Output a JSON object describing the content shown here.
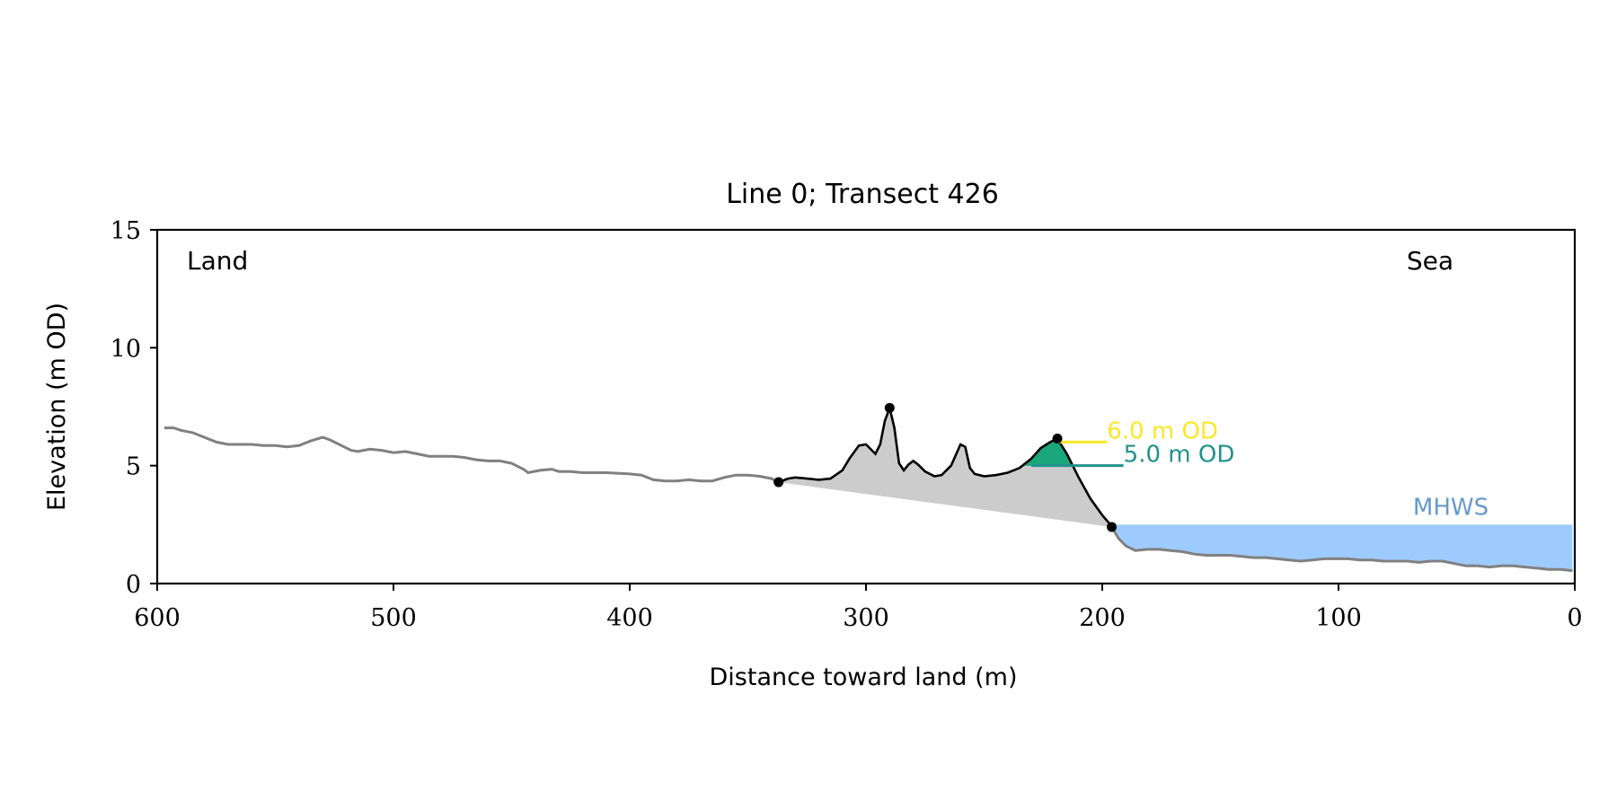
{
  "chart_data": {
    "type": "line",
    "title": "Line 0; Transect 426",
    "xlabel": "Distance toward land (m)",
    "ylabel": "Elevation (m OD)",
    "xlim": [
      600,
      0
    ],
    "ylim": [
      0,
      15
    ],
    "x_axis_inverted": true,
    "xticks": [
      600,
      500,
      400,
      300,
      200,
      100,
      0
    ],
    "yticks": [
      0,
      5,
      10,
      15
    ],
    "grid": false,
    "region_labels": {
      "left": "Land",
      "right": "Sea"
    },
    "annotations": {
      "mhws_label": "MHWS",
      "level6_label": "6.0 m OD",
      "level5_label": "5.0 m OD"
    },
    "colors": {
      "profile": "#808080",
      "dune": "#000000",
      "dune_fill": "#cccccc",
      "mhws_fill": "#9ecbff",
      "mhws_text": "#6699cc",
      "level6": "#fde725",
      "level5": "#21918c",
      "above5_fill": "#1ba67c"
    },
    "mhws_level": 2.5,
    "profile": {
      "x": [
        597,
        593,
        590,
        585,
        580,
        575,
        570,
        565,
        560,
        555,
        550,
        545,
        540,
        535,
        530,
        527,
        523,
        518,
        515,
        510,
        505,
        500,
        495,
        490,
        485,
        480,
        475,
        470,
        465,
        460,
        455,
        450,
        445,
        443,
        438,
        433,
        430,
        425,
        420,
        410,
        400,
        395,
        390,
        385,
        380,
        375,
        370,
        365,
        360,
        355,
        350,
        345,
        340,
        337
      ],
      "y": [
        6.6,
        6.6,
        6.5,
        6.4,
        6.2,
        6.0,
        5.9,
        5.9,
        5.9,
        5.85,
        5.85,
        5.8,
        5.85,
        6.05,
        6.2,
        6.1,
        5.9,
        5.65,
        5.6,
        5.7,
        5.65,
        5.55,
        5.6,
        5.5,
        5.4,
        5.4,
        5.4,
        5.35,
        5.25,
        5.2,
        5.2,
        5.1,
        4.85,
        4.7,
        4.8,
        4.85,
        4.75,
        4.75,
        4.7,
        4.7,
        4.65,
        4.6,
        4.4,
        4.35,
        4.35,
        4.4,
        4.35,
        4.35,
        4.5,
        4.6,
        4.6,
        4.55,
        4.45,
        4.3
      ]
    },
    "dune": {
      "x": [
        337,
        333,
        330,
        325,
        320,
        315,
        310,
        307,
        303,
        300,
        296,
        294,
        292,
        290,
        288,
        286,
        284,
        282,
        280,
        278,
        275,
        271,
        268,
        264,
        260,
        258,
        256,
        254,
        250,
        245,
        240,
        235,
        230,
        226,
        222,
        219,
        215,
        210,
        205,
        200,
        197,
        196
      ],
      "y": [
        4.3,
        4.45,
        4.5,
        4.45,
        4.4,
        4.45,
        4.8,
        5.3,
        5.85,
        5.9,
        5.5,
        5.9,
        6.9,
        7.45,
        6.6,
        5.1,
        4.8,
        5.05,
        5.2,
        5.05,
        4.75,
        4.55,
        4.6,
        5.0,
        5.9,
        5.8,
        4.9,
        4.65,
        4.55,
        4.6,
        4.7,
        4.9,
        5.3,
        5.75,
        6.0,
        6.15,
        5.5,
        4.5,
        3.6,
        2.9,
        2.55,
        2.4
      ]
    },
    "nearshore": {
      "x": [
        196,
        193,
        190,
        186,
        181,
        176,
        171,
        166,
        161,
        156,
        151,
        146,
        141,
        136,
        131,
        126,
        121,
        116,
        111,
        106,
        101,
        96,
        91,
        86,
        81,
        76,
        71,
        66,
        61,
        56,
        51,
        46,
        41,
        36,
        31,
        26,
        21,
        16,
        11,
        6,
        1
      ],
      "y": [
        2.4,
        1.9,
        1.6,
        1.4,
        1.45,
        1.45,
        1.4,
        1.35,
        1.25,
        1.2,
        1.2,
        1.2,
        1.15,
        1.1,
        1.1,
        1.05,
        1.0,
        0.95,
        1.0,
        1.05,
        1.05,
        1.05,
        1.0,
        1.0,
        0.95,
        0.95,
        0.95,
        0.9,
        0.95,
        0.95,
        0.85,
        0.75,
        0.75,
        0.7,
        0.75,
        0.75,
        0.7,
        0.65,
        0.6,
        0.6,
        0.55
      ]
    },
    "markers": [
      {
        "x": 337,
        "y": 4.3
      },
      {
        "x": 290,
        "y": 7.45
      },
      {
        "x": 219,
        "y": 6.15
      },
      {
        "x": 196,
        "y": 2.4
      }
    ],
    "level_lines": [
      {
        "y": 6.0,
        "x_start": 219,
        "x_end": 198
      },
      {
        "y": 5.0,
        "x_start": 230,
        "x_end": 191
      }
    ]
  }
}
